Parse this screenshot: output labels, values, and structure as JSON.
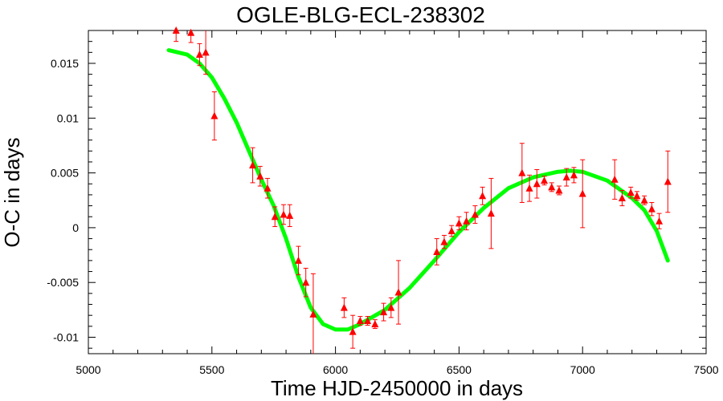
{
  "chart_data": {
    "type": "scatter",
    "title": "OGLE-BLG-ECL-238302",
    "xlabel": "Time HJD-2450000 in days",
    "ylabel": "O-C in days",
    "xlim": [
      5000,
      7500
    ],
    "ylim": [
      -0.0115,
      0.018
    ],
    "x_ticks": [
      5000,
      5500,
      6000,
      6500,
      7000,
      7500
    ],
    "x_tick_labels": [
      "5000",
      "5500",
      "6000",
      "6500",
      "7000",
      "7500"
    ],
    "y_ticks": [
      -0.01,
      -0.005,
      0,
      0.005,
      0.01,
      0.015
    ],
    "y_tick_labels": [
      "-0.01",
      "-0.005",
      "0",
      "0.005",
      "0.01",
      "0.015"
    ],
    "grid": false,
    "series": [
      {
        "kind": "points_with_errorbars",
        "marker": "triangle",
        "color": "#ff0000",
        "points": [
          {
            "x": 5355,
            "y": 0.018,
            "err": 0.001
          },
          {
            "x": 5415,
            "y": 0.0178,
            "err": 0.0009
          },
          {
            "x": 5450,
            "y": 0.0158,
            "err": 0.001
          },
          {
            "x": 5475,
            "y": 0.016,
            "err": 0.002
          },
          {
            "x": 5510,
            "y": 0.0102,
            "err": 0.0022
          },
          {
            "x": 5665,
            "y": 0.0057,
            "err": 0.0016
          },
          {
            "x": 5695,
            "y": 0.0047,
            "err": 0.0009
          },
          {
            "x": 5725,
            "y": 0.0036,
            "err": 0.0009
          },
          {
            "x": 5755,
            "y": 0.001,
            "err": 0.0009
          },
          {
            "x": 5790,
            "y": 0.0012,
            "err": 0.0009
          },
          {
            "x": 5815,
            "y": 0.0011,
            "err": 0.001
          },
          {
            "x": 5850,
            "y": -0.003,
            "err": 0.0013
          },
          {
            "x": 5880,
            "y": -0.005,
            "err": 0.0013
          },
          {
            "x": 5910,
            "y": -0.0079,
            "err": 0.0037
          },
          {
            "x": 6035,
            "y": -0.0073,
            "err": 0.0009
          },
          {
            "x": 6070,
            "y": -0.0095,
            "err": 0.0015
          },
          {
            "x": 6100,
            "y": -0.0085,
            "err": 0.0004
          },
          {
            "x": 6130,
            "y": -0.0085,
            "err": 0.0004
          },
          {
            "x": 6160,
            "y": -0.0088,
            "err": 0.0004
          },
          {
            "x": 6195,
            "y": -0.0077,
            "err": 0.0008
          },
          {
            "x": 6225,
            "y": -0.0073,
            "err": 0.0009
          },
          {
            "x": 6255,
            "y": -0.0059,
            "err": 0.0029
          },
          {
            "x": 6410,
            "y": -0.0022,
            "err": 0.0012
          },
          {
            "x": 6440,
            "y": -0.0013,
            "err": 0.0006
          },
          {
            "x": 6470,
            "y": -0.0003,
            "err": 0.0005
          },
          {
            "x": 6500,
            "y": 0.0004,
            "err": 0.0006
          },
          {
            "x": 6530,
            "y": 0.0006,
            "err": 0.0008
          },
          {
            "x": 6565,
            "y": 0.0012,
            "err": 0.0008
          },
          {
            "x": 6595,
            "y": 0.0029,
            "err": 0.0008
          },
          {
            "x": 6630,
            "y": 0.0013,
            "err": 0.0032
          },
          {
            "x": 6755,
            "y": 0.005,
            "err": 0.0027
          },
          {
            "x": 6785,
            "y": 0.0036,
            "err": 0.0012
          },
          {
            "x": 6815,
            "y": 0.004,
            "err": 0.0013
          },
          {
            "x": 6845,
            "y": 0.0043,
            "err": 0.0004
          },
          {
            "x": 6875,
            "y": 0.0037,
            "err": 0.0004
          },
          {
            "x": 6905,
            "y": 0.0034,
            "err": 0.0004
          },
          {
            "x": 6935,
            "y": 0.0046,
            "err": 0.0008
          },
          {
            "x": 6965,
            "y": 0.0048,
            "err": 0.0007
          },
          {
            "x": 7000,
            "y": 0.0031,
            "err": 0.0031
          },
          {
            "x": 7130,
            "y": 0.0044,
            "err": 0.0018
          },
          {
            "x": 7160,
            "y": 0.0027,
            "err": 0.0007
          },
          {
            "x": 7195,
            "y": 0.0032,
            "err": 0.0005
          },
          {
            "x": 7220,
            "y": 0.0029,
            "err": 0.0004
          },
          {
            "x": 7250,
            "y": 0.0025,
            "err": 0.0004
          },
          {
            "x": 7280,
            "y": 0.0017,
            "err": 0.0006
          },
          {
            "x": 7310,
            "y": 0.0006,
            "err": 0.0007
          },
          {
            "x": 7345,
            "y": 0.0042,
            "err": 0.0028
          }
        ]
      },
      {
        "kind": "fit_curve",
        "color": "#00ff00",
        "points": [
          [
            5325,
            0.0162
          ],
          [
            5400,
            0.0158
          ],
          [
            5450,
            0.015
          ],
          [
            5500,
            0.0137
          ],
          [
            5550,
            0.0118
          ],
          [
            5600,
            0.0096
          ],
          [
            5650,
            0.007
          ],
          [
            5700,
            0.0044
          ],
          [
            5750,
            0.002
          ],
          [
            5800,
            -0.001
          ],
          [
            5850,
            -0.0045
          ],
          [
            5900,
            -0.0073
          ],
          [
            5950,
            -0.0088
          ],
          [
            6000,
            -0.0093
          ],
          [
            6050,
            -0.0093
          ],
          [
            6100,
            -0.0088
          ],
          [
            6200,
            -0.0075
          ],
          [
            6300,
            -0.0055
          ],
          [
            6400,
            -0.003
          ],
          [
            6500,
            -0.0004
          ],
          [
            6600,
            0.0018
          ],
          [
            6700,
            0.0036
          ],
          [
            6800,
            0.0046
          ],
          [
            6900,
            0.0051
          ],
          [
            6950,
            0.0052
          ],
          [
            7000,
            0.0051
          ],
          [
            7100,
            0.0043
          ],
          [
            7200,
            0.0027
          ],
          [
            7250,
            0.0016
          ],
          [
            7300,
            -0.0003
          ],
          [
            7345,
            -0.003
          ]
        ]
      }
    ]
  }
}
